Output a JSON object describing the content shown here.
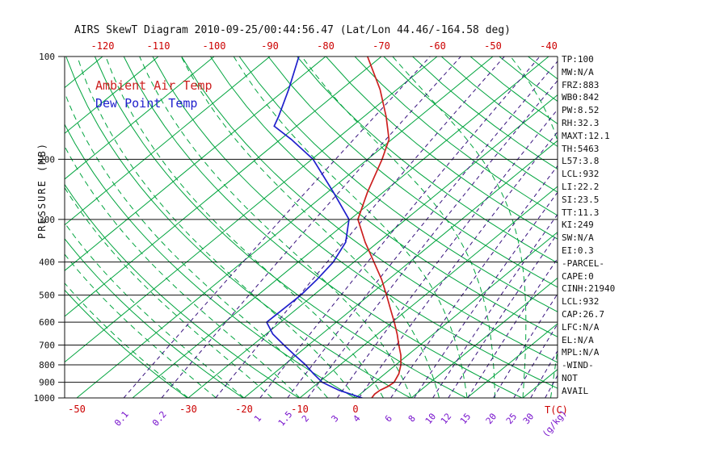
{
  "title": "AIRS SkewT Diagram 2010-09-25/00:44:56.47 (Lat/Lon 44.46/-164.58 deg)",
  "legend": {
    "ambient": "Ambient Air Temp",
    "dew": "Dew Point Temp"
  },
  "y_axis": {
    "label": "PRESSURE (MB)"
  },
  "bottom_axis": {
    "temp_unit": "T(C)",
    "mixr_unit": "(g/kg)"
  },
  "side_panel": {
    "lines": [
      "TP:100",
      "MW:N/A",
      "FRZ:883",
      "WB0:842",
      "PW:8.52",
      "RH:32.3",
      "MAXT:12.1",
      "TH:5463",
      "L57:3.8",
      "LCL:932",
      "LI:22.2",
      "SI:23.5",
      "TT:11.3",
      "KI:249",
      "SW:N/A",
      "EI:0.3",
      "-PARCEL-",
      "CAPE:0",
      "CINH:21940",
      "LCL:932",
      "CAP:26.7",
      "LFC:N/A",
      "EL:N/A",
      "MPL:N/A",
      "-WIND-",
      "NOT",
      "AVAIL"
    ]
  },
  "chart_data": {
    "type": "line",
    "subtype": "skew-t-log-p",
    "title": "AIRS SkewT Diagram 2010-09-25/00:44:56.47 (Lat/Lon 44.46/-164.58 deg)",
    "xlabel": "T(C)",
    "ylabel": "PRESSURE (MB)",
    "grid": "skewt-background",
    "legend_position": "top-left-inside",
    "pressure_ticks_mb": [
      100,
      200,
      300,
      400,
      500,
      600,
      700,
      800,
      900,
      1000
    ],
    "pressure_range_mb": [
      100,
      1000
    ],
    "top_temp_ticks_c": [
      -120,
      -110,
      -100,
      -90,
      -80,
      -70,
      -60,
      -50,
      -40
    ],
    "bottom_temp_ticks_c": [
      -50,
      -30,
      -20,
      -10,
      0
    ],
    "isotherms_c": {
      "min": -130,
      "max": 40,
      "step": 10
    },
    "dry_adiabats_theta_k": {
      "min": 243,
      "max": 453,
      "step": 10
    },
    "moist_adiabats_surface_c": {
      "min": -30,
      "max": 40,
      "step": 5
    },
    "mixing_ratio_lines_gkg": [
      0.1,
      0.2,
      0.5,
      1,
      1.5,
      2,
      3,
      4,
      6,
      8,
      10,
      12,
      15,
      20,
      25,
      30,
      35
    ],
    "mixing_ratio_labels_gkg": [
      0.1,
      0.2,
      1,
      1.5,
      2,
      3,
      4,
      6,
      8,
      10,
      12,
      15,
      20,
      25,
      30
    ],
    "series": [
      {
        "name": "Ambient Air Temp",
        "color": "#cc1f1f",
        "points_p_mb_t_c": [
          [
            100,
            -72.5
          ],
          [
            125,
            -63.0
          ],
          [
            150,
            -56.0
          ],
          [
            175,
            -50.5
          ],
          [
            200,
            -47.4
          ],
          [
            250,
            -42.8
          ],
          [
            300,
            -38.6
          ],
          [
            350,
            -32.3
          ],
          [
            400,
            -26.4
          ],
          [
            450,
            -21.2
          ],
          [
            500,
            -16.9
          ],
          [
            550,
            -13.1
          ],
          [
            600,
            -9.6
          ],
          [
            650,
            -6.5
          ],
          [
            700,
            -3.8
          ],
          [
            750,
            -1.2
          ],
          [
            800,
            0.9
          ],
          [
            850,
            2.5
          ],
          [
            900,
            3.5
          ],
          [
            925,
            3.3
          ],
          [
            950,
            2.7
          ],
          [
            975,
            2.6
          ],
          [
            1000,
            2.9
          ]
        ]
      },
      {
        "name": "Dew Point Temp",
        "color": "#1f1fcc",
        "points_p_mb_t_c": [
          [
            100,
            -84.8
          ],
          [
            125,
            -79.4
          ],
          [
            150,
            -75.3
          ],
          [
            160,
            -74.0
          ],
          [
            175,
            -68.0
          ],
          [
            200,
            -59.8
          ],
          [
            250,
            -48.9
          ],
          [
            300,
            -40.2
          ],
          [
            350,
            -35.8
          ],
          [
            400,
            -33.7
          ],
          [
            450,
            -32.8
          ],
          [
            500,
            -32.3
          ],
          [
            550,
            -32.4
          ],
          [
            600,
            -32.5
          ],
          [
            650,
            -28.8
          ],
          [
            700,
            -24.4
          ],
          [
            750,
            -20.2
          ],
          [
            800,
            -16.2
          ],
          [
            850,
            -12.8
          ],
          [
            900,
            -9.4
          ],
          [
            950,
            -4.6
          ],
          [
            1000,
            1.2
          ]
        ]
      }
    ],
    "colors": {
      "isotherm_adiabat_green": "#00a43e",
      "mixing_ratio_purple": "#38127e",
      "mixing_label_purple": "#7712cc",
      "axis_black": "#111111",
      "tick_red": "#cc0000"
    }
  }
}
